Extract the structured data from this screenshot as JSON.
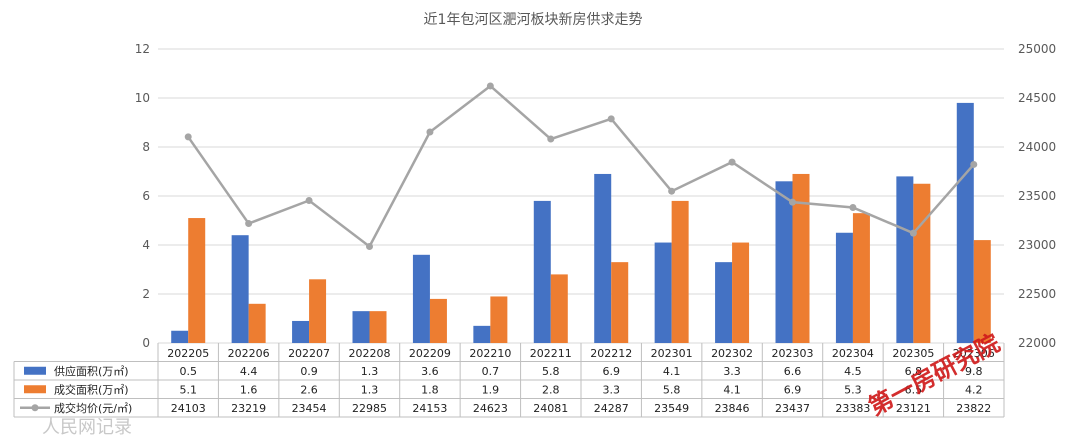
{
  "chart_data": {
    "type": "bar",
    "title": "近1年包河区淝河板块新房供求走势",
    "categories": [
      "202205",
      "202206",
      "202207",
      "202208",
      "202209",
      "202210",
      "202211",
      "202212",
      "202301",
      "202302",
      "202303",
      "202304",
      "202305",
      "202306"
    ],
    "series": [
      {
        "name": "供应面积(万㎡)",
        "kind": "bar",
        "axis": "left",
        "color": "#4472c4",
        "values": [
          0.5,
          4.4,
          0.9,
          1.3,
          3.6,
          0.7,
          5.8,
          6.9,
          4.1,
          3.3,
          6.6,
          4.5,
          6.8,
          9.8
        ]
      },
      {
        "name": "成交面积(万㎡)",
        "kind": "bar",
        "axis": "left",
        "color": "#ed7d31",
        "values": [
          5.1,
          1.6,
          2.6,
          1.3,
          1.8,
          1.9,
          2.8,
          3.3,
          5.8,
          4.1,
          6.9,
          5.3,
          6.5,
          4.2
        ]
      },
      {
        "name": "成交均价(元/㎡)",
        "kind": "line",
        "axis": "right",
        "color": "#a5a5a5",
        "values": [
          24103,
          23219,
          23454,
          22985,
          24153,
          24623,
          24081,
          24287,
          23549,
          23846,
          23437,
          23383,
          23121,
          23822
        ]
      }
    ],
    "ylim_left": [
      0,
      12
    ],
    "yticks_left": [
      0,
      2,
      4,
      6,
      8,
      10,
      12
    ],
    "ylim_right": [
      22000,
      25000
    ],
    "yticks_right": [
      22000,
      22500,
      23000,
      23500,
      24000,
      24500,
      25000
    ],
    "grid": true,
    "legend": "data-table"
  },
  "table_values": [
    [
      "0.5",
      "4.4",
      "0.9",
      "1.3",
      "3.6",
      "0.7",
      "5.8",
      "6.9",
      "4.1",
      "3.3",
      "6.6",
      "4.5",
      "6.8",
      "9.8"
    ],
    [
      "5.1",
      "1.6",
      "2.6",
      "1.3",
      "1.8",
      "1.9",
      "2.8",
      "3.3",
      "5.8",
      "4.1",
      "6.9",
      "5.3",
      "6.5",
      "4.2"
    ],
    [
      "24103",
      "23219",
      "23454",
      "22985",
      "24153",
      "24623",
      "24081",
      "24287",
      "23549",
      "23846",
      "23437",
      "23383",
      "23121",
      "23822"
    ]
  ],
  "watermarks": {
    "red": "第一房研究院",
    "grey": "人民网记录"
  }
}
